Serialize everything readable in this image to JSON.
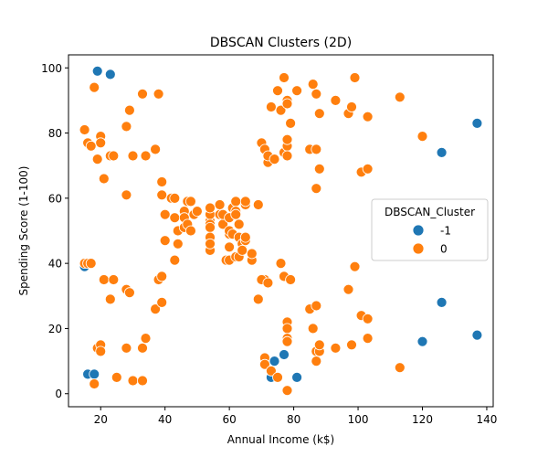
{
  "chart_data": {
    "type": "scatter",
    "title": "DBSCAN Clusters (2D)",
    "xlabel": "Annual Income (k$)",
    "ylabel": "Spending Score (1-100)",
    "xlim": [
      10,
      142
    ],
    "ylim": [
      -4,
      104
    ],
    "xticks": [
      20,
      40,
      60,
      80,
      100,
      120,
      140
    ],
    "yticks": [
      0,
      20,
      40,
      60,
      80,
      100
    ],
    "grid": false,
    "legend": {
      "title": "DBSCAN_Cluster",
      "placement": "center-right"
    },
    "series": [
      {
        "name": "-1",
        "color": "#1f77b4",
        "points": [
          [
            19,
            99
          ],
          [
            23,
            98
          ],
          [
            15,
            39
          ],
          [
            16,
            6
          ],
          [
            18,
            6
          ],
          [
            73,
            5
          ],
          [
            74,
            10
          ],
          [
            77,
            12
          ],
          [
            81,
            5
          ],
          [
            120,
            16
          ],
          [
            126,
            28
          ],
          [
            137,
            18
          ],
          [
            126,
            74
          ],
          [
            137,
            83
          ]
        ]
      },
      {
        "name": "0",
        "color": "#ff7f0e",
        "points": [
          [
            15,
            81
          ],
          [
            16,
            77
          ],
          [
            17,
            76
          ],
          [
            18,
            94
          ],
          [
            19,
            72
          ],
          [
            20,
            79
          ],
          [
            20,
            77
          ],
          [
            21,
            66
          ],
          [
            23,
            73
          ],
          [
            24,
            73
          ],
          [
            28,
            82
          ],
          [
            28,
            61
          ],
          [
            29,
            87
          ],
          [
            30,
            73
          ],
          [
            33,
            92
          ],
          [
            34,
            73
          ],
          [
            37,
            75
          ],
          [
            38,
            92
          ],
          [
            39,
            61
          ],
          [
            39,
            65
          ],
          [
            40,
            55
          ],
          [
            40,
            47
          ],
          [
            42,
            60
          ],
          [
            43,
            60
          ],
          [
            43,
            54
          ],
          [
            43,
            41
          ],
          [
            44,
            50
          ],
          [
            44,
            46
          ],
          [
            46,
            56
          ],
          [
            46,
            54
          ],
          [
            46,
            51
          ],
          [
            47,
            52
          ],
          [
            47,
            59
          ],
          [
            48,
            59
          ],
          [
            48,
            50
          ],
          [
            49,
            55
          ],
          [
            50,
            56
          ],
          [
            54,
            47
          ],
          [
            54,
            53
          ],
          [
            54,
            55
          ],
          [
            54,
            57
          ],
          [
            54,
            52
          ],
          [
            54,
            51
          ],
          [
            54,
            48
          ],
          [
            54,
            44
          ],
          [
            54,
            46
          ],
          [
            57,
            55
          ],
          [
            57,
            58
          ],
          [
            58,
            52
          ],
          [
            58,
            55
          ],
          [
            59,
            41
          ],
          [
            60,
            49
          ],
          [
            60,
            50
          ],
          [
            60,
            45
          ],
          [
            60,
            54
          ],
          [
            60,
            41
          ],
          [
            61,
            49
          ],
          [
            61,
            57
          ],
          [
            62,
            42
          ],
          [
            62,
            59
          ],
          [
            62,
            56
          ],
          [
            62,
            55
          ],
          [
            63,
            52
          ],
          [
            63,
            42
          ],
          [
            63,
            48
          ],
          [
            64,
            46
          ],
          [
            64,
            44
          ],
          [
            65,
            58
          ],
          [
            65,
            59
          ],
          [
            65,
            47
          ],
          [
            65,
            48
          ],
          [
            67,
            41
          ],
          [
            67,
            43
          ],
          [
            69,
            58
          ],
          [
            70,
            77
          ],
          [
            71,
            75
          ],
          [
            71,
            35
          ],
          [
            72,
            71
          ],
          [
            72,
            73
          ],
          [
            73,
            88
          ],
          [
            74,
            72
          ],
          [
            75,
            93
          ],
          [
            76,
            87
          ],
          [
            77,
            97
          ],
          [
            77,
            74
          ],
          [
            78,
            90
          ],
          [
            78,
            76
          ],
          [
            78,
            89
          ],
          [
            78,
            78
          ],
          [
            78,
            73
          ],
          [
            79,
            83
          ],
          [
            81,
            93
          ],
          [
            85,
            75
          ],
          [
            86,
            95
          ],
          [
            87,
            75
          ],
          [
            87,
            92
          ],
          [
            87,
            63
          ],
          [
            88,
            69
          ],
          [
            88,
            86
          ],
          [
            93,
            90
          ],
          [
            97,
            86
          ],
          [
            98,
            88
          ],
          [
            99,
            97
          ],
          [
            101,
            68
          ],
          [
            103,
            85
          ],
          [
            103,
            69
          ],
          [
            113,
            91
          ],
          [
            120,
            79
          ],
          [
            15,
            40
          ],
          [
            16,
            40
          ],
          [
            17,
            40
          ],
          [
            19,
            14
          ],
          [
            20,
            15
          ],
          [
            20,
            13
          ],
          [
            21,
            35
          ],
          [
            23,
            29
          ],
          [
            24,
            35
          ],
          [
            25,
            5
          ],
          [
            28,
            32
          ],
          [
            28,
            14
          ],
          [
            29,
            31
          ],
          [
            30,
            4
          ],
          [
            33,
            4
          ],
          [
            33,
            14
          ],
          [
            34,
            17
          ],
          [
            37,
            26
          ],
          [
            38,
            35
          ],
          [
            39,
            36
          ],
          [
            39,
            28
          ],
          [
            18,
            3
          ],
          [
            69,
            29
          ],
          [
            70,
            35
          ],
          [
            71,
            11
          ],
          [
            71,
            9
          ],
          [
            72,
            34
          ],
          [
            73,
            7
          ],
          [
            75,
            5
          ],
          [
            76,
            40
          ],
          [
            77,
            36
          ],
          [
            78,
            22
          ],
          [
            78,
            20
          ],
          [
            78,
            17
          ],
          [
            78,
            16
          ],
          [
            78,
            1
          ],
          [
            79,
            35
          ],
          [
            85,
            26
          ],
          [
            86,
            20
          ],
          [
            87,
            27
          ],
          [
            87,
            13
          ],
          [
            87,
            10
          ],
          [
            88,
            13
          ],
          [
            88,
            15
          ],
          [
            93,
            14
          ],
          [
            97,
            32
          ],
          [
            98,
            15
          ],
          [
            99,
            39
          ],
          [
            101,
            24
          ],
          [
            103,
            23
          ],
          [
            103,
            17
          ],
          [
            113,
            8
          ]
        ]
      }
    ]
  }
}
